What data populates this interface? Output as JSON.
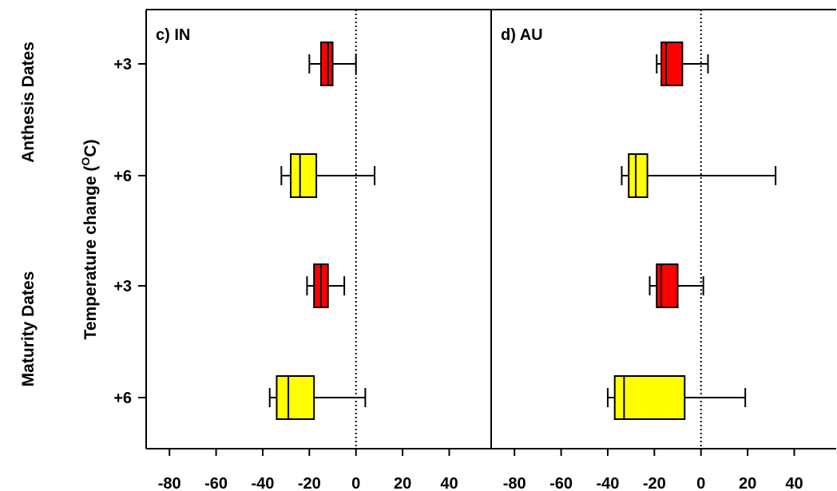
{
  "chart_data": {
    "type": "boxplot",
    "orientation": "horizontal",
    "ylabel": "Temperature change (°C)",
    "ylabel_main": "Temperature change (",
    "ylabel_sup": "O",
    "ylabel_end": "C)",
    "group_labels": [
      "Anthesis Dates",
      "Maturity Dates"
    ],
    "row_labels": [
      "+3",
      "+6",
      "+3",
      "+6"
    ],
    "xlim": [
      -90,
      58
    ],
    "xticks": [
      -80,
      -60,
      -40,
      -20,
      0,
      20,
      40
    ],
    "xtick_labels": [
      "-80",
      "-60",
      "-40",
      "-20",
      "0",
      "20",
      "40"
    ],
    "reference_line": 0,
    "colors": {
      "+3": "#ff0000",
      "+6": "#ffff00"
    },
    "panels": [
      {
        "label": "c) IN",
        "boxes": [
          {
            "group": "Anthesis Dates",
            "temp": "+3",
            "min": -20,
            "q1": -15,
            "median": -12,
            "q3": -10,
            "max": 0
          },
          {
            "group": "Anthesis Dates",
            "temp": "+6",
            "min": -32,
            "q1": -28,
            "median": -24,
            "q3": -17,
            "max": 8
          },
          {
            "group": "Maturity Dates",
            "temp": "+3",
            "min": -21,
            "q1": -18,
            "median": -15,
            "q3": -12,
            "max": -5
          },
          {
            "group": "Maturity Dates",
            "temp": "+6",
            "min": -37,
            "q1": -34,
            "median": -29,
            "q3": -18,
            "max": 4
          }
        ]
      },
      {
        "label": "d) AU",
        "boxes": [
          {
            "group": "Anthesis Dates",
            "temp": "+3",
            "min": -19,
            "q1": -17,
            "median": -15,
            "q3": -8,
            "max": 3
          },
          {
            "group": "Anthesis Dates",
            "temp": "+6",
            "min": -34,
            "q1": -31,
            "median": -28,
            "q3": -23,
            "max": 32
          },
          {
            "group": "Maturity Dates",
            "temp": "+3",
            "min": -22,
            "q1": -19,
            "median": -17,
            "q3": -10,
            "max": 1
          },
          {
            "group": "Maturity Dates",
            "temp": "+6",
            "min": -40,
            "q1": -37,
            "median": -33,
            "q3": -7,
            "max": 19
          }
        ]
      }
    ]
  }
}
